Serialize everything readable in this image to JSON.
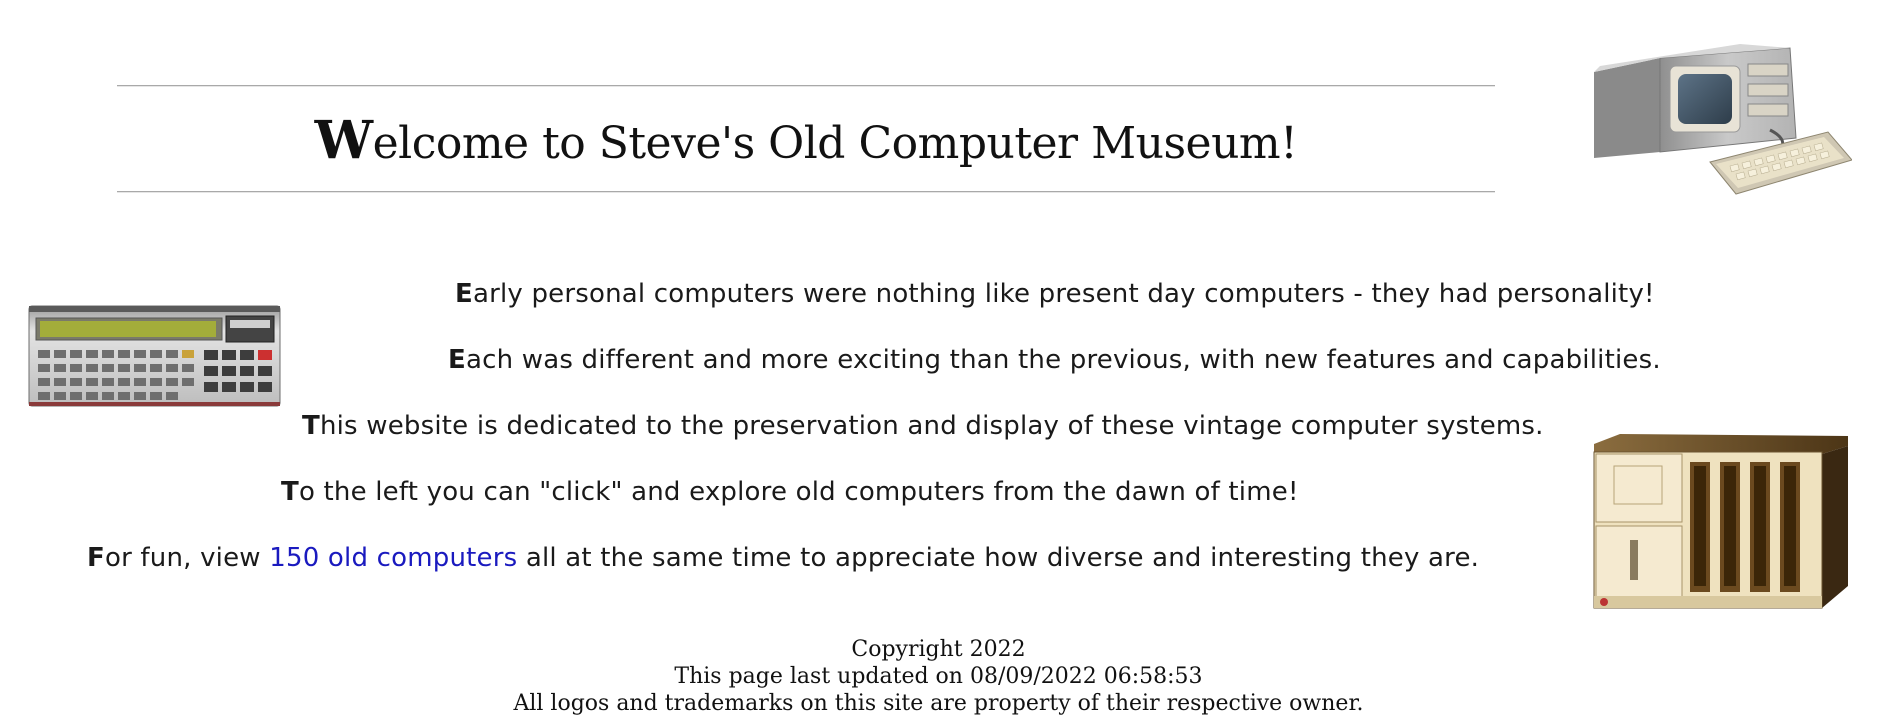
{
  "header": {
    "title_cap": "W",
    "title_rest": "elcome to Steve's Old Computer Museum!"
  },
  "intro": {
    "line1": {
      "cap": "E",
      "rest": "arly personal computers were nothing like present day computers - they had personality!"
    },
    "line2": {
      "cap": "E",
      "rest": "ach was different and more exciting than the previous, with new features and capabilities."
    },
    "line3": {
      "cap": "T",
      "rest": "his website is dedicated to the preservation and display of these vintage computer systems."
    },
    "line4": {
      "cap": "T",
      "rest": "o the left you can \"click\" and explore old computers from the dawn of time!"
    },
    "line5": {
      "cap": "F",
      "before": "or fun, view ",
      "link": "150 old computers",
      "after": " all at the same time to appreciate how diverse and interesting they are."
    }
  },
  "footer": {
    "copyright": "Copyright 2022",
    "updated": "This page last updated on 08/09/2022 06:58:53",
    "trademarks": "All logos and trademarks on this site are property of their respective owner."
  },
  "images": {
    "laptop": "portable-computer-image",
    "pocket": "pocket-computer-image",
    "cabinet": "rack-computer-image"
  },
  "colors": {
    "link": "#1a1abf",
    "rule": "#a9a9a9",
    "text": "#111111"
  }
}
